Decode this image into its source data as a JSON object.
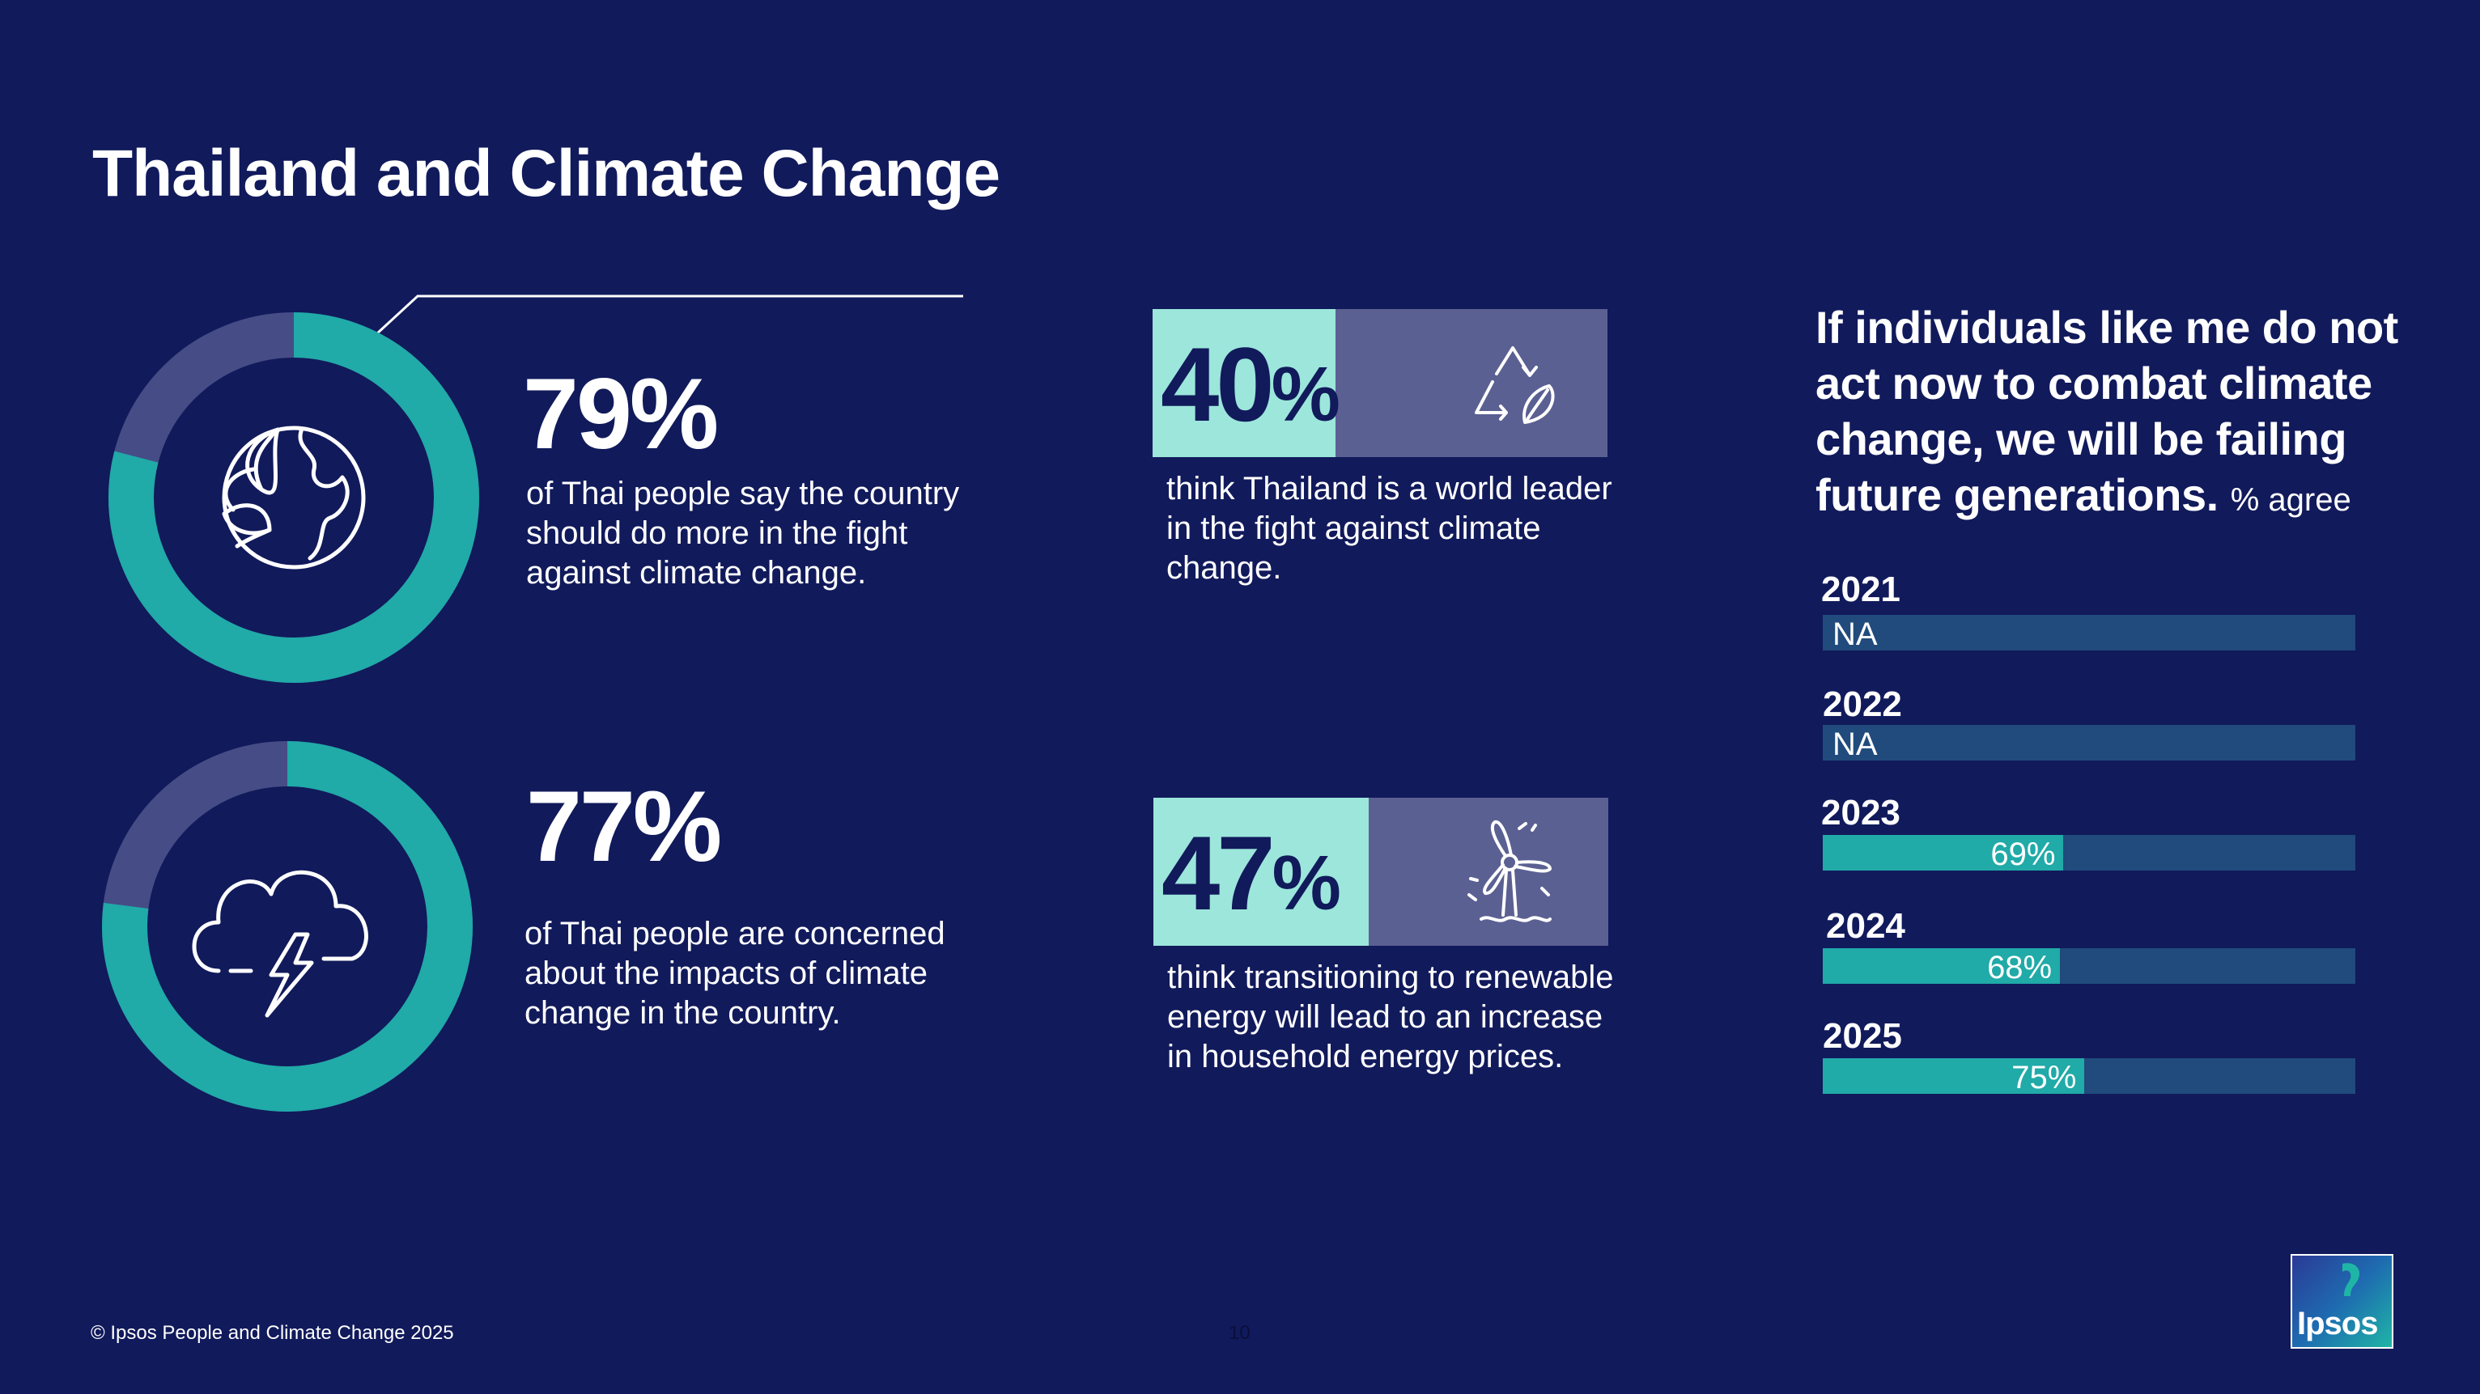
{
  "title": "Thailand and Climate Change",
  "colors": {
    "background": "#111a5b",
    "teal": "#20aaa8",
    "donut_remainder": "#464c86",
    "light_teal": "#9ce6db",
    "box_gray": "#5b6092",
    "bar_track": "#204b7c"
  },
  "stats": {
    "stat1": {
      "value": "79%",
      "fraction": 0.79,
      "icon": "earth-leaf-icon",
      "text": "of Thai people say the country should do more in the fight against climate change."
    },
    "stat2": {
      "value": "77%",
      "fraction": 0.77,
      "icon": "storm-cloud-icon",
      "text": "of Thai people are concerned about the impacts of climate change in the country."
    },
    "stat3": {
      "number": "40",
      "suffix": "%",
      "icon": "recycle-leaf-icon",
      "text": "think Thailand is a world leader in the fight against climate change."
    },
    "stat4": {
      "number": "47",
      "suffix": "%",
      "icon": "wind-turbine-icon",
      "text": "think transitioning to renewable energy will lead to an increase in household energy prices."
    }
  },
  "question": {
    "text": "If individuals like me do not act now to combat climate change, we will be failing future generations.",
    "suffix": "% agree"
  },
  "bars": [
    {
      "year": "2021",
      "label": "NA",
      "value": null
    },
    {
      "year": "2022",
      "label": "NA",
      "value": null
    },
    {
      "year": "2023",
      "label": "69%",
      "value": 69
    },
    {
      "year": "2024",
      "label": "68%",
      "value": 68
    },
    {
      "year": "2025",
      "label": "75%",
      "value": 75
    }
  ],
  "footer": {
    "copyright": "© Ipsos People and Climate Change 2025",
    "page_number": "10",
    "logo_text": "Ipsos"
  }
}
